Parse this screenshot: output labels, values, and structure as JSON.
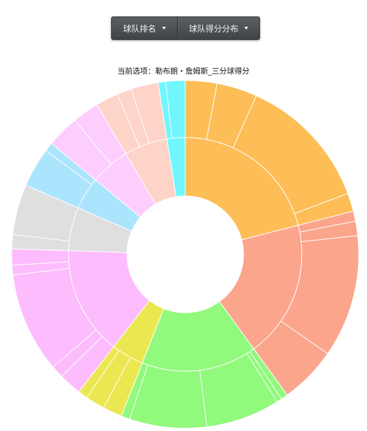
{
  "menu": {
    "team_rank": "球队排名",
    "team_score_dist": "球队得分分布"
  },
  "chart_data": {
    "type": "sunburst",
    "subtitle": "当前选项：勒布朗・詹姆斯_三分球得分",
    "rings": [
      "inner",
      "outer"
    ],
    "colors": {
      "orange": "#fdbd57",
      "salmon": "#fba58d",
      "green": "#91f97c",
      "yellow": "#ebe750",
      "pink": "#fdbcfd",
      "lavender": "#fdcefd",
      "gray": "#dfdfdf",
      "sky": "#abe4fd",
      "cyan": "#70f6fd",
      "peach": "#fed3c8"
    },
    "groups": [
      {
        "color": "#fdbd57",
        "share": 0.21,
        "children": [
          0.14,
          0.18,
          0.6,
          0.08
        ]
      },
      {
        "color": "#fba58d",
        "share": 0.19,
        "children": [
          0.05,
          0.07,
          0.6,
          0.28
        ]
      },
      {
        "color": "#91f97c",
        "share": 0.16,
        "children": [
          0.04,
          0.03,
          0.43,
          0.45,
          0.05
        ]
      },
      {
        "color": "#ebe750",
        "share": 0.045,
        "children": [
          0.4,
          0.4,
          0.2
        ]
      },
      {
        "color": "#fdbcfd",
        "share": 0.15,
        "children": [
          0.14,
          0.08,
          0.62,
          0.06,
          0.1
        ]
      },
      {
        "color": "#dfdfdf",
        "share": 0.06,
        "children": [
          0.22,
          0.78
        ]
      },
      {
        "color": "#abe4fd",
        "share": 0.045,
        "children": [
          0.82,
          0.18
        ]
      },
      {
        "color": "#fdcefd",
        "share": 0.055,
        "children": [
          0.55,
          0.45
        ]
      },
      {
        "color": "#fed3c8",
        "share": 0.06,
        "children": [
          0.35,
          0.23,
          0.42
        ]
      },
      {
        "color": "#70f6fd",
        "share": 0.025,
        "children": [
          0.28,
          0.72
        ]
      }
    ],
    "rim_segments": [
      {
        "color": "#fdbd57",
        "share": 0.045
      },
      {
        "color": "#dfdfdf",
        "share": 0.02
      },
      {
        "color": "#70f6fd",
        "share": 0.035
      }
    ]
  }
}
